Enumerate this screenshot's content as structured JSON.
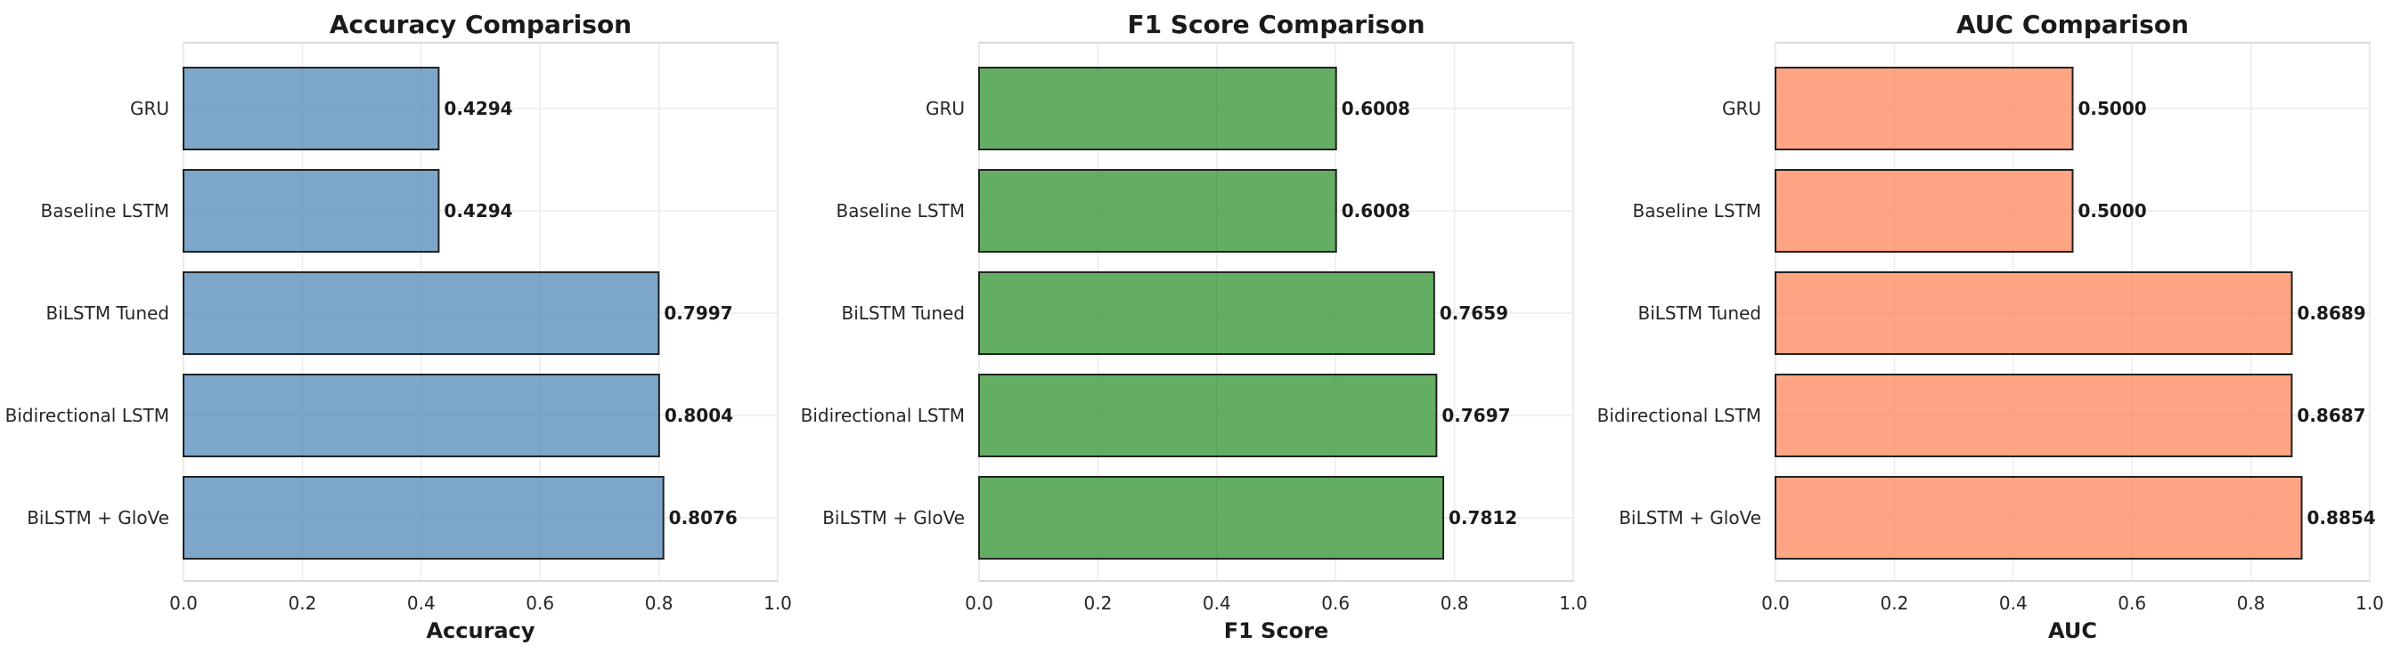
{
  "chart_data": [
    {
      "type": "bar",
      "orientation": "horizontal",
      "title": "Accuracy Comparison",
      "xlabel": "Accuracy",
      "ylabel": "",
      "xlim": [
        0,
        1
      ],
      "xticks": [
        "0.0",
        "0.2",
        "0.4",
        "0.6",
        "0.8",
        "1.0"
      ],
      "categories": [
        "GRU",
        "Baseline LSTM",
        "BiLSTM Tuned",
        "Bidirectional LSTM",
        "BiLSTM + GloVe"
      ],
      "values": [
        0.4294,
        0.4294,
        0.7997,
        0.8004,
        0.8076
      ],
      "value_labels": [
        "0.4294",
        "0.4294",
        "0.7997",
        "0.8004",
        "0.8076"
      ],
      "color": "#4682b4",
      "grid": true
    },
    {
      "type": "bar",
      "orientation": "horizontal",
      "title": "F1 Score Comparison",
      "xlabel": "F1 Score",
      "ylabel": "",
      "xlim": [
        0,
        1
      ],
      "xticks": [
        "0.0",
        "0.2",
        "0.4",
        "0.6",
        "0.8",
        "1.0"
      ],
      "categories": [
        "GRU",
        "Baseline LSTM",
        "BiLSTM Tuned",
        "Bidirectional LSTM",
        "BiLSTM + GloVe"
      ],
      "values": [
        0.6008,
        0.6008,
        0.7659,
        0.7697,
        0.7812
      ],
      "value_labels": [
        "0.6008",
        "0.6008",
        "0.7659",
        "0.7697",
        "0.7812"
      ],
      "color": "#228b22",
      "grid": true
    },
    {
      "type": "bar",
      "orientation": "horizontal",
      "title": "AUC Comparison",
      "xlabel": "AUC",
      "ylabel": "",
      "xlim": [
        0,
        1
      ],
      "xticks": [
        "0.0",
        "0.2",
        "0.4",
        "0.6",
        "0.8",
        "1.0"
      ],
      "categories": [
        "GRU",
        "Baseline LSTM",
        "BiLSTM Tuned",
        "Bidirectional LSTM",
        "BiLSTM + GloVe"
      ],
      "values": [
        0.5,
        0.5,
        0.8689,
        0.8687,
        0.8854
      ],
      "value_labels": [
        "0.5000",
        "0.5000",
        "0.8689",
        "0.8687",
        "0.8854"
      ],
      "color": "#ff7f50",
      "grid": true
    }
  ]
}
